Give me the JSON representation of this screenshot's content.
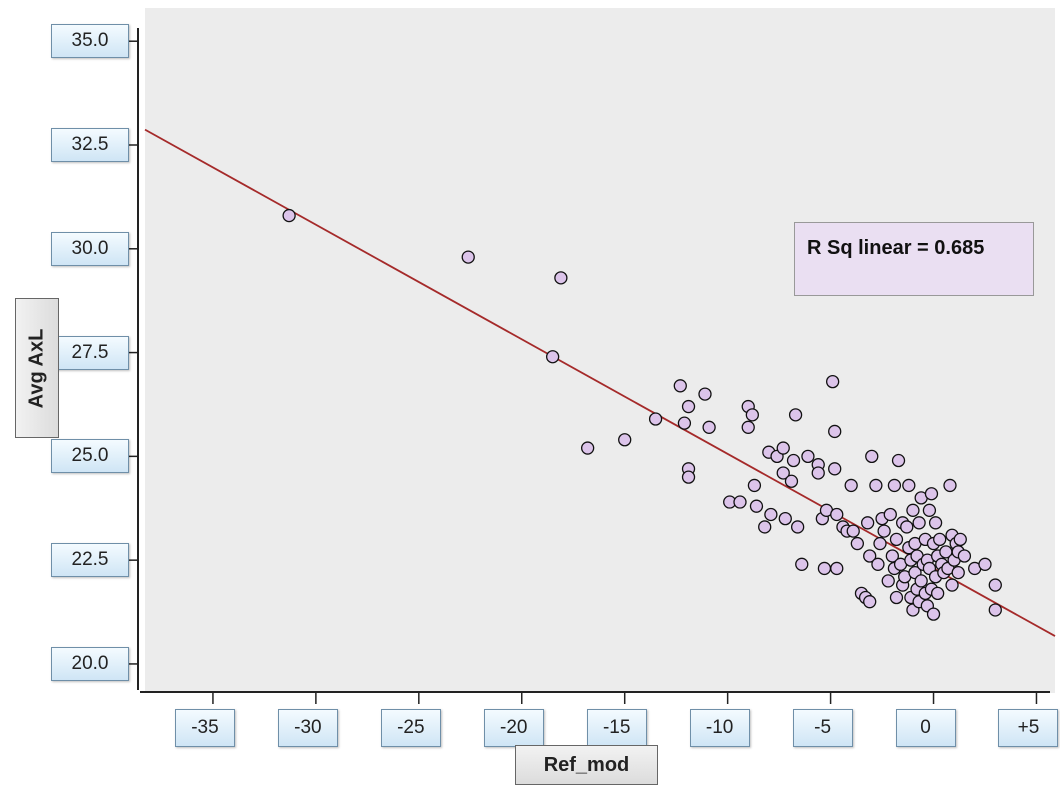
{
  "chart_data": {
    "type": "scatter",
    "xlabel": "Ref_mod",
    "ylabel": "Avg   AxL",
    "xlim": [
      -38.3,
      5.9
    ],
    "ylim": [
      19.3,
      35.8
    ],
    "x_ticks": [
      {
        "value": -35,
        "label": "-35"
      },
      {
        "value": -30,
        "label": "-30"
      },
      {
        "value": -25,
        "label": "-25"
      },
      {
        "value": -20,
        "label": "-20"
      },
      {
        "value": -15,
        "label": "-15"
      },
      {
        "value": -10,
        "label": "-10"
      },
      {
        "value": -5,
        "label": "-5"
      },
      {
        "value": 0,
        "label": "0"
      },
      {
        "value": 5,
        "label": "+5"
      }
    ],
    "y_ticks": [
      {
        "value": 20.0,
        "label": "20.0"
      },
      {
        "value": 22.5,
        "label": "22.5"
      },
      {
        "value": 25.0,
        "label": "25.0"
      },
      {
        "value": 27.5,
        "label": "27.5"
      },
      {
        "value": 30.0,
        "label": "30.0"
      },
      {
        "value": 32.5,
        "label": "32.5"
      },
      {
        "value": 35.0,
        "label": "35.0"
      }
    ],
    "annotation": "R Sq linear = 0.685",
    "fit_line": {
      "intercept": 22.3,
      "slope": -0.276,
      "color": "#a52a2a"
    },
    "point_color": "#dcc4ea",
    "point_edge": "#111111",
    "grid": false,
    "legend": "none",
    "points": [
      [
        -31.3,
        30.8
      ],
      [
        -22.6,
        29.8
      ],
      [
        -18.1,
        29.3
      ],
      [
        -18.5,
        27.4
      ],
      [
        -16.8,
        25.2
      ],
      [
        -15.0,
        25.4
      ],
      [
        -13.5,
        25.9
      ],
      [
        -12.3,
        26.7
      ],
      [
        -11.9,
        26.2
      ],
      [
        -11.1,
        26.5
      ],
      [
        -12.1,
        25.8
      ],
      [
        -10.9,
        25.7
      ],
      [
        -11.9,
        24.7
      ],
      [
        -11.9,
        24.5
      ],
      [
        -9.9,
        23.9
      ],
      [
        -9.4,
        23.9
      ],
      [
        -9.0,
        26.2
      ],
      [
        -8.8,
        26.0
      ],
      [
        -9.0,
        25.7
      ],
      [
        -8.6,
        23.8
      ],
      [
        -8.7,
        24.3
      ],
      [
        -8.2,
        23.3
      ],
      [
        -8.0,
        25.1
      ],
      [
        -7.9,
        23.6
      ],
      [
        -7.6,
        25.0
      ],
      [
        -7.3,
        24.6
      ],
      [
        -7.3,
        25.2
      ],
      [
        -7.2,
        23.5
      ],
      [
        -6.9,
        24.4
      ],
      [
        -6.8,
        24.9
      ],
      [
        -6.7,
        26.0
      ],
      [
        -6.6,
        23.3
      ],
      [
        -6.4,
        22.4
      ],
      [
        -6.1,
        25.0
      ],
      [
        -5.6,
        24.8
      ],
      [
        -5.6,
        24.6
      ],
      [
        -5.3,
        22.3
      ],
      [
        -5.4,
        23.5
      ],
      [
        -5.2,
        23.7
      ],
      [
        -4.9,
        26.8
      ],
      [
        -4.8,
        25.6
      ],
      [
        -4.8,
        24.7
      ],
      [
        -4.7,
        22.3
      ],
      [
        -4.7,
        23.6
      ],
      [
        -4.4,
        23.3
      ],
      [
        -4.2,
        23.2
      ],
      [
        -4.0,
        24.3
      ],
      [
        -3.9,
        23.2
      ],
      [
        -3.7,
        22.9
      ],
      [
        -3.5,
        21.7
      ],
      [
        -3.3,
        21.6
      ],
      [
        -3.1,
        21.5
      ],
      [
        -3.1,
        22.6
      ],
      [
        -3.2,
        23.4
      ],
      [
        -3.0,
        25.0
      ],
      [
        -2.8,
        24.3
      ],
      [
        -2.7,
        22.4
      ],
      [
        -2.6,
        22.9
      ],
      [
        -2.5,
        23.5
      ],
      [
        -2.4,
        23.2
      ],
      [
        -2.2,
        22.0
      ],
      [
        -2.1,
        23.6
      ],
      [
        -2.0,
        22.6
      ],
      [
        -1.9,
        24.3
      ],
      [
        -1.9,
        22.3
      ],
      [
        -1.8,
        23.0
      ],
      [
        -1.8,
        21.6
      ],
      [
        -1.7,
        24.9
      ],
      [
        -1.6,
        22.4
      ],
      [
        -1.5,
        23.4
      ],
      [
        -1.5,
        21.9
      ],
      [
        -1.4,
        22.1
      ],
      [
        -1.3,
        23.3
      ],
      [
        -1.2,
        24.3
      ],
      [
        -1.2,
        22.8
      ],
      [
        -1.1,
        22.5
      ],
      [
        -1.1,
        21.6
      ],
      [
        -1.0,
        23.7
      ],
      [
        -1.0,
        21.3
      ],
      [
        -0.9,
        22.9
      ],
      [
        -0.9,
        22.2
      ],
      [
        -0.8,
        21.8
      ],
      [
        -0.8,
        22.6
      ],
      [
        -0.7,
        23.4
      ],
      [
        -0.7,
        21.5
      ],
      [
        -0.6,
        24.0
      ],
      [
        -0.6,
        22.0
      ],
      [
        -0.5,
        22.4
      ],
      [
        -0.4,
        21.7
      ],
      [
        -0.4,
        23.0
      ],
      [
        -0.3,
        22.5
      ],
      [
        -0.3,
        21.4
      ],
      [
        -0.2,
        23.7
      ],
      [
        -0.2,
        22.3
      ],
      [
        -0.1,
        24.1
      ],
      [
        -0.1,
        21.8
      ],
      [
        0.0,
        22.9
      ],
      [
        0.0,
        21.2
      ],
      [
        0.1,
        23.4
      ],
      [
        0.1,
        22.1
      ],
      [
        0.2,
        22.6
      ],
      [
        0.2,
        21.7
      ],
      [
        0.3,
        23.0
      ],
      [
        0.4,
        22.4
      ],
      [
        0.5,
        22.2
      ],
      [
        0.6,
        22.7
      ],
      [
        0.7,
        22.3
      ],
      [
        0.8,
        24.3
      ],
      [
        0.9,
        23.1
      ],
      [
        0.9,
        21.9
      ],
      [
        1.0,
        22.5
      ],
      [
        1.1,
        22.9
      ],
      [
        1.2,
        22.7
      ],
      [
        1.2,
        22.2
      ],
      [
        1.3,
        23.0
      ],
      [
        1.5,
        22.6
      ],
      [
        2.0,
        22.3
      ],
      [
        2.5,
        22.4
      ],
      [
        3.0,
        21.9
      ],
      [
        3.0,
        21.3
      ]
    ]
  }
}
